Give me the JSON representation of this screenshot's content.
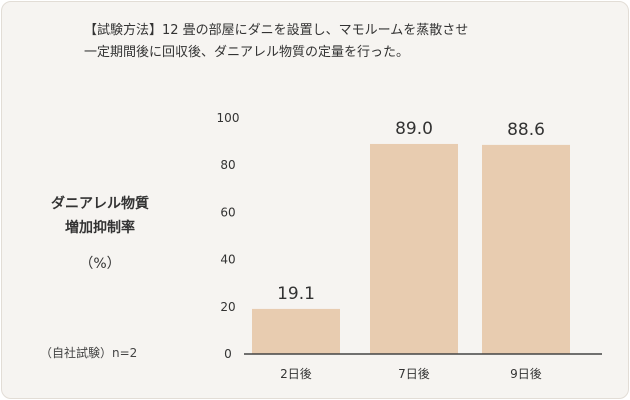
{
  "method": {
    "line1": "【試験方法】12 畳の部屋にダニを設置し、マモルームを蒸散させ",
    "line2": "一定期間後に回収後、ダニアレル物質の定量を行った。"
  },
  "ylabel": {
    "line1": "ダニアレル物質",
    "line2": "増加抑制率",
    "unit": "（%）"
  },
  "note": "（自社試験）n=2",
  "colors": {
    "bar": "#e8ccb0",
    "axis": "#444444",
    "text": "#333333",
    "background": "#f6f4f1"
  },
  "chart_data": {
    "type": "bar",
    "categories": [
      "2日後",
      "7日後",
      "9日後"
    ],
    "values": [
      19.1,
      89.0,
      88.6
    ],
    "value_labels": [
      "19.1",
      "89.0",
      "88.6"
    ],
    "ylim": [
      0,
      100
    ],
    "yticks": [
      0,
      20,
      40,
      60,
      80,
      100
    ],
    "grid": false,
    "legend": "none"
  }
}
